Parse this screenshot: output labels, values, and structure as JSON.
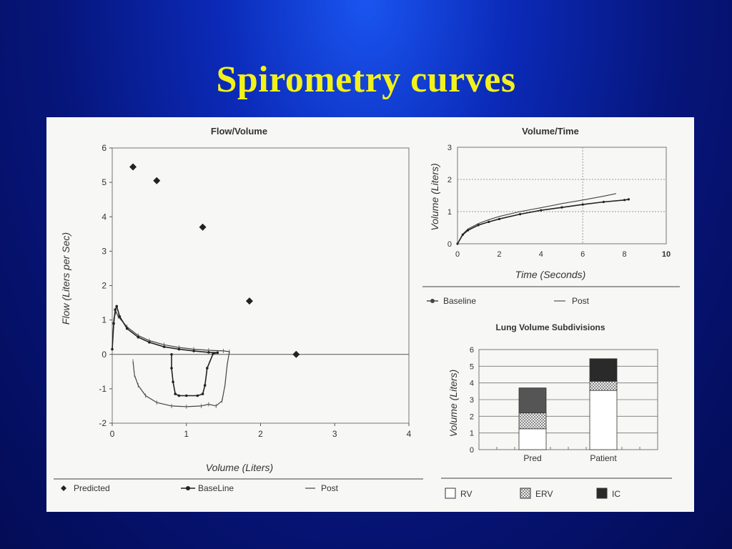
{
  "slide": {
    "title": "Spirometry curves"
  },
  "chart_data": [
    {
      "id": "flow-volume",
      "type": "scatter",
      "title": "Flow/Volume",
      "xlabel": "Volume (Liters)",
      "ylabel": "Flow (Liters per Sec)",
      "xlim": [
        0,
        4
      ],
      "ylim": [
        -2,
        6
      ],
      "xticks": [
        "0",
        "1",
        "2",
        "3",
        "4"
      ],
      "yticks": [
        "-2",
        "-1",
        "0",
        "1",
        "2",
        "3",
        "4",
        "5",
        "6"
      ],
      "legend_position": "bottom",
      "series": [
        {
          "name": "Predicted",
          "style": "diamond",
          "points": [
            [
              0.28,
              5.45
            ],
            [
              0.6,
              5.05
            ],
            [
              1.22,
              3.7
            ],
            [
              1.85,
              1.55
            ],
            [
              2.48,
              0.0
            ]
          ]
        },
        {
          "name": "BaseLine",
          "style": "dot-line",
          "points": [
            [
              0.0,
              0.15
            ],
            [
              0.02,
              0.9
            ],
            [
              0.04,
              1.3
            ],
            [
              0.06,
              1.4
            ],
            [
              0.1,
              1.1
            ],
            [
              0.2,
              0.75
            ],
            [
              0.35,
              0.5
            ],
            [
              0.5,
              0.35
            ],
            [
              0.7,
              0.22
            ],
            [
              0.9,
              0.15
            ],
            [
              1.1,
              0.1
            ],
            [
              1.3,
              0.06
            ],
            [
              1.42,
              0.05
            ],
            [
              1.36,
              0.02
            ],
            [
              1.28,
              -0.4
            ],
            [
              1.25,
              -0.9
            ],
            [
              1.22,
              -1.15
            ],
            [
              1.15,
              -1.2
            ],
            [
              1.0,
              -1.2
            ],
            [
              0.9,
              -1.2
            ],
            [
              0.85,
              -1.15
            ],
            [
              0.82,
              -0.8
            ],
            [
              0.8,
              -0.4
            ],
            [
              0.8,
              0.0
            ]
          ]
        },
        {
          "name": "Post",
          "style": "line",
          "points": [
            [
              0.0,
              0.2
            ],
            [
              0.02,
              1.0
            ],
            [
              0.05,
              1.25
            ],
            [
              0.08,
              1.1
            ],
            [
              0.2,
              0.8
            ],
            [
              0.35,
              0.55
            ],
            [
              0.5,
              0.4
            ],
            [
              0.7,
              0.28
            ],
            [
              0.9,
              0.2
            ],
            [
              1.1,
              0.15
            ],
            [
              1.3,
              0.12
            ],
            [
              1.5,
              0.1
            ],
            [
              1.58,
              0.08
            ],
            [
              1.55,
              -0.3
            ],
            [
              1.52,
              -0.9
            ],
            [
              1.48,
              -1.35
            ],
            [
              1.4,
              -1.5
            ],
            [
              1.3,
              -1.45
            ],
            [
              1.2,
              -1.5
            ],
            [
              1.0,
              -1.52
            ],
            [
              0.8,
              -1.5
            ],
            [
              0.6,
              -1.4
            ],
            [
              0.45,
              -1.2
            ],
            [
              0.35,
              -0.9
            ],
            [
              0.3,
              -0.6
            ],
            [
              0.28,
              -0.2
            ]
          ]
        }
      ]
    },
    {
      "id": "volume-time",
      "type": "line",
      "title": "Volume/Time",
      "xlabel": "Time (Seconds)",
      "ylabel": "Volume (Liters)",
      "xlim": [
        0,
        10
      ],
      "ylim": [
        0,
        3
      ],
      "xticks": [
        "0",
        "2",
        "4",
        "6",
        "8",
        "10"
      ],
      "yticks": [
        "0",
        "1",
        "2",
        "3"
      ],
      "legend_position": "bottom",
      "series": [
        {
          "name": "Baseline",
          "style": "dot-line",
          "points": [
            [
              0,
              0
            ],
            [
              0.25,
              0.28
            ],
            [
              0.5,
              0.42
            ],
            [
              1,
              0.58
            ],
            [
              1.5,
              0.68
            ],
            [
              2,
              0.77
            ],
            [
              3,
              0.92
            ],
            [
              4,
              1.04
            ],
            [
              5,
              1.13
            ],
            [
              6,
              1.22
            ],
            [
              7,
              1.3
            ],
            [
              8,
              1.36
            ],
            [
              8.2,
              1.38
            ]
          ]
        },
        {
          "name": "Post",
          "style": "line",
          "points": [
            [
              0,
              0
            ],
            [
              0.25,
              0.3
            ],
            [
              0.5,
              0.46
            ],
            [
              1,
              0.63
            ],
            [
              1.5,
              0.75
            ],
            [
              2,
              0.85
            ],
            [
              3,
              1.0
            ],
            [
              4,
              1.12
            ],
            [
              5,
              1.25
            ],
            [
              6,
              1.36
            ],
            [
              7,
              1.48
            ],
            [
              7.6,
              1.56
            ]
          ]
        }
      ]
    },
    {
      "id": "lung-volume",
      "type": "bar",
      "stacked": true,
      "title": "Lung Volume Subdivisions",
      "xlabel": "",
      "ylabel": "Volume (Liters)",
      "ylim": [
        0,
        6
      ],
      "yticks": [
        "0",
        "1",
        "2",
        "3",
        "4",
        "5",
        "6"
      ],
      "categories": [
        "Pred",
        "Patient"
      ],
      "legend_position": "bottom",
      "series": [
        {
          "name": "RV",
          "pattern": "white",
          "values": [
            1.25,
            3.55
          ]
        },
        {
          "name": "ERV",
          "pattern": "checker",
          "values": [
            0.95,
            0.55
          ]
        },
        {
          "name": "IC",
          "pattern": "dark",
          "values": [
            1.5,
            1.35
          ]
        }
      ]
    }
  ],
  "colors": {
    "background": "#0b2ab8",
    "title": "#f2f21a",
    "panel": "#f7f7f5",
    "ink": "#333333"
  }
}
